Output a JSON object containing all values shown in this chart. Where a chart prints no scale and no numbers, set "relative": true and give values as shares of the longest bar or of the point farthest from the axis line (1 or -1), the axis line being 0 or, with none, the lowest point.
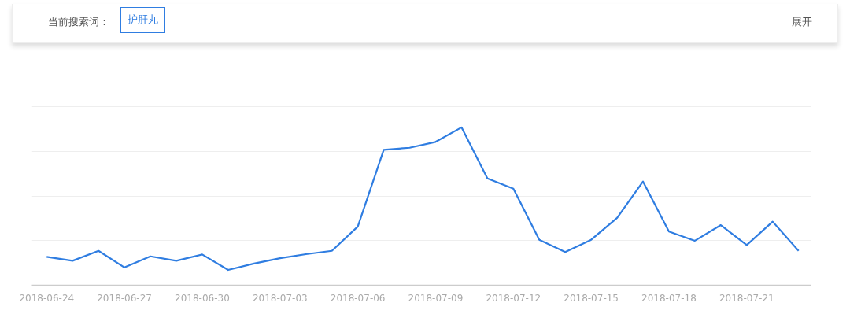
{
  "chart_data": {
    "type": "line",
    "relative": true,
    "categories": [
      "2018-06-24",
      null,
      null,
      "2018-06-27",
      null,
      null,
      "2018-06-30",
      null,
      null,
      "2018-07-03",
      null,
      null,
      "2018-07-06",
      null,
      null,
      "2018-07-09",
      null,
      null,
      "2018-07-12",
      null,
      null,
      "2018-07-15",
      null,
      null,
      "2018-07-18",
      null,
      null,
      "2018-07-21",
      null,
      null
    ],
    "series": [
      {
        "color": "#2f7de1",
        "values": [
          0.18,
          0.155,
          0.218,
          0.113,
          0.183,
          0.155,
          0.195,
          0.097,
          0.138,
          0.171,
          0.197,
          0.218,
          0.372,
          0.858,
          0.871,
          0.908,
          1.0,
          0.677,
          0.612,
          0.288,
          0.21,
          0.288,
          0.427,
          0.657,
          0.34,
          0.282,
          0.381,
          0.255,
          0.403,
          0.218
        ]
      }
    ],
    "grid": true,
    "marker": "none",
    "line_style": "solid",
    "annotations": [
      "当前搜索词：",
      "护肝丸",
      "展开"
    ]
  }
}
